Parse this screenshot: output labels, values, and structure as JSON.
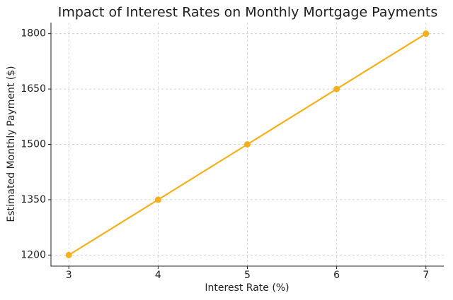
{
  "chart_data": {
    "type": "line",
    "title": "Impact of Interest Rates on Monthly Mortgage Payments",
    "x_label": "Interest Rate (%)",
    "y_label": "Estimated Monthly Payment ($)",
    "x": [
      3,
      4,
      5,
      6,
      7
    ],
    "series": [
      {
        "name": "Monthly Payment",
        "color": "#f5b01b",
        "values": [
          1200,
          1350,
          1500,
          1650,
          1800
        ]
      }
    ],
    "xlim": [
      2.8,
      7.2
    ],
    "xticks": [
      3,
      4,
      5,
      6,
      7
    ],
    "ylim": [
      1170,
      1830
    ],
    "yticks": [
      1200,
      1350,
      1500,
      1650,
      1800
    ],
    "grid": true
  }
}
